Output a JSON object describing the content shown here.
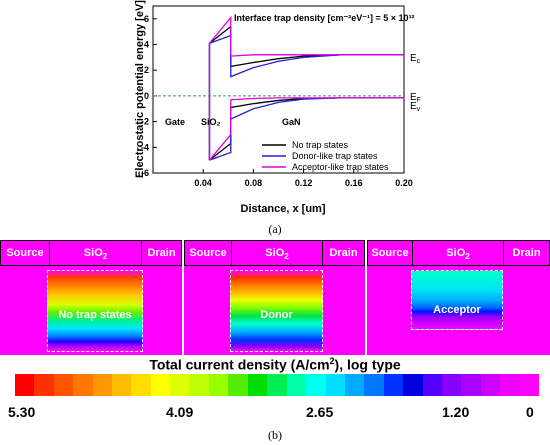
{
  "chart_data": [
    {
      "type": "line",
      "title": "Interface trap density [cm⁻²eV⁻¹] = 5 × 10¹²",
      "xlabel": "Distance, x [um]",
      "ylabel": "Electrostatic potential energy [eV]",
      "xlim": [
        0.0,
        0.2
      ],
      "ylim": [
        -6,
        7
      ],
      "xticks": [
        "0.04",
        "0.08",
        "0.12",
        "0.16",
        "0.20"
      ],
      "yticks": [
        "-6",
        "-4",
        "-2",
        "0",
        "2",
        "4",
        "6"
      ],
      "regions": [
        "Gate",
        "SiO₂",
        "GaN"
      ],
      "band_labels": {
        "Ec": "E",
        "Ec_sub": "c",
        "EF": "E",
        "EF_sub": "F",
        "Ev": "E",
        "Ev_sub": "v"
      },
      "ef_level": 0,
      "legend": {
        "placement": "bottom-right"
      },
      "series": [
        {
          "name": "No trap states",
          "color": "#000000",
          "ec": {
            "x": [
              0.045,
              0.062,
              0.062,
              0.08,
              0.1,
              0.12,
              0.15,
              0.2
            ],
            "y": [
              4.1,
              5.4,
              2.3,
              2.6,
              2.9,
              3.1,
              3.2,
              3.2
            ]
          },
          "ev": {
            "x": [
              0.045,
              0.062,
              0.062,
              0.08,
              0.1,
              0.12,
              0.15,
              0.2
            ],
            "y": [
              -5.0,
              -3.7,
              -0.9,
              -0.6,
              -0.35,
              -0.2,
              -0.15,
              -0.15
            ]
          }
        },
        {
          "name": "Donor-like trap states",
          "color": "#1f1fd6",
          "ec": {
            "x": [
              0.045,
              0.062,
              0.062,
              0.08,
              0.1,
              0.12,
              0.15,
              0.2
            ],
            "y": [
              4.1,
              4.7,
              1.5,
              2.2,
              2.7,
              3.0,
              3.2,
              3.2
            ]
          },
          "ev": {
            "x": [
              0.045,
              0.062,
              0.062,
              0.08,
              0.1,
              0.12,
              0.15,
              0.2
            ],
            "y": [
              -5.0,
              -4.4,
              -1.8,
              -1.0,
              -0.5,
              -0.25,
              -0.15,
              -0.15
            ]
          }
        },
        {
          "name": "Acceptor-like trap states",
          "color": "#e000e0",
          "ec": {
            "x": [
              0.045,
              0.062,
              0.062,
              0.08,
              0.1,
              0.12,
              0.15,
              0.2
            ],
            "y": [
              4.1,
              6.1,
              3.1,
              3.2,
              3.2,
              3.2,
              3.2,
              3.2
            ]
          },
          "ev": {
            "x": [
              0.045,
              0.062,
              0.062,
              0.08,
              0.1,
              0.12,
              0.15,
              0.2
            ],
            "y": [
              -5.0,
              -3.0,
              -0.3,
              -0.2,
              -0.15,
              -0.15,
              -0.15,
              -0.15
            ]
          }
        }
      ]
    },
    {
      "type": "heatmap",
      "title": "Total current density (A/cm²), log type",
      "colorbar_ticks": [
        "5.30",
        "4.09",
        "2.65",
        "1.20",
        "0"
      ],
      "colorbar_colors": [
        "#ff0000",
        "#ff3000",
        "#ff5500",
        "#ff7700",
        "#ff9900",
        "#ffbb00",
        "#ffdd00",
        "#ffff00",
        "#ddff00",
        "#bbff00",
        "#99ff00",
        "#55ee00",
        "#00dd00",
        "#00ee55",
        "#00ffaa",
        "#00ffee",
        "#00ddff",
        "#00aaff",
        "#0077ff",
        "#0033ff",
        "#0000dd",
        "#5500ff",
        "#8800ff",
        "#aa00ff",
        "#cc00ff",
        "#ee00ff",
        "#ff00ff"
      ],
      "panels": [
        {
          "source": "Source",
          "oxide": "SiO",
          "oxide_sub": "2",
          "drain": "Drain",
          "label": "No trap states"
        },
        {
          "source": "Source",
          "oxide": "SiO",
          "oxide_sub": "2",
          "drain": "Drain",
          "label": "Donor"
        },
        {
          "source": "Source",
          "oxide": "SiO",
          "oxide_sub": "2",
          "drain": "Drain",
          "label": "Acceptor"
        }
      ]
    }
  ],
  "captions": {
    "a": "(a)",
    "b": "(b)"
  }
}
